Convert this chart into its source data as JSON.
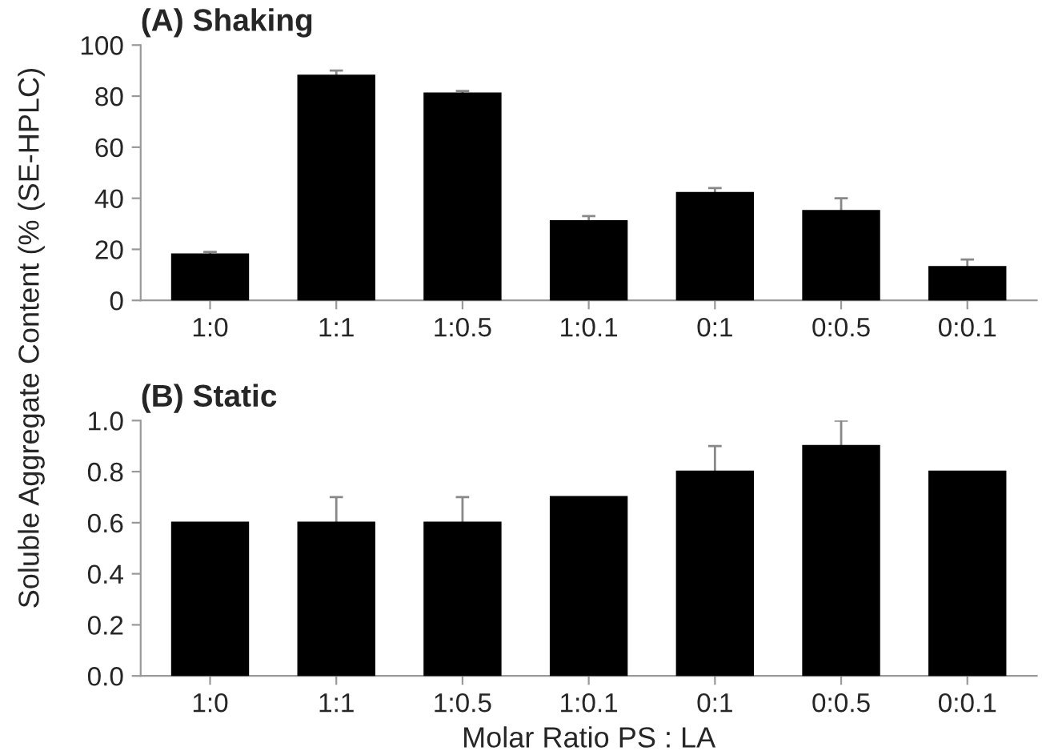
{
  "chart_data": [
    {
      "type": "bar",
      "title": "(A) Shaking",
      "ylabel": "Soluble Aggregate Content (% (SE-HPLC)",
      "categories": [
        "1:0",
        "1:1",
        "1:0.5",
        "1:0.1",
        "0:1",
        "0:0.5",
        "0:0.1"
      ],
      "values": [
        18,
        88,
        81,
        31,
        42,
        35,
        13
      ],
      "color": "#000000",
      "errors": [
        1,
        2,
        1,
        2,
        2,
        5,
        3
      ],
      "ylim": [
        0,
        100
      ],
      "yticks": [
        0,
        20,
        40,
        60,
        80,
        100
      ],
      "grid": false
    },
    {
      "type": "bar",
      "title": "(B) Static",
      "xlabel": "Molar Ratio PS : LA",
      "categories": [
        "1:0",
        "1:1",
        "1:0.5",
        "1:0.1",
        "0:1",
        "0:0.5",
        "0:0.1"
      ],
      "values": [
        0.6,
        0.6,
        0.6,
        0.7,
        0.8,
        0.9,
        0.8
      ],
      "color": "#000000",
      "errors": [
        null,
        0.1,
        0.1,
        null,
        0.1,
        0.1,
        null
      ],
      "ylim": [
        0,
        1.0
      ],
      "yticks": [
        {
          "value": 0,
          "label": "0.0"
        },
        {
          "value": 0.2,
          "label": "0.2"
        },
        {
          "value": 0.4,
          "label": "0.4"
        },
        {
          "value": 0.6,
          "label": "0.6"
        },
        {
          "value": 0.8,
          "label": "0.8"
        },
        {
          "value": 1.0,
          "label": "1.0"
        }
      ],
      "grid": false
    }
  ]
}
